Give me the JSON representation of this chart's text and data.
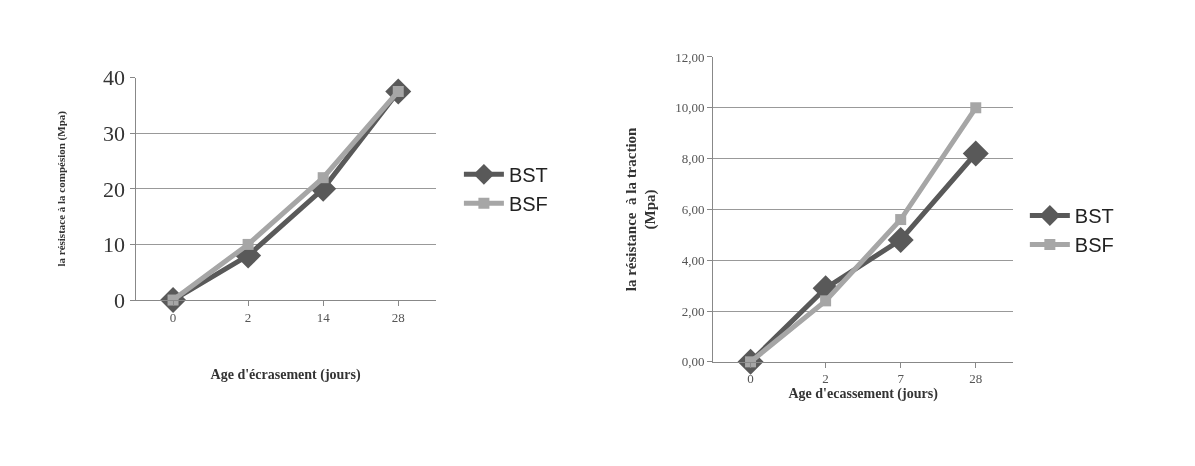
{
  "chart_data": [
    {
      "type": "line",
      "xlabel": "Age d'écrasement (jours)",
      "ylabel": "la résistace à la compésion (Mpa)",
      "categories": [
        "0",
        "2",
        "14",
        "28"
      ],
      "ylim": [
        0,
        40
      ],
      "yticks": [
        0,
        10,
        20,
        30,
        40
      ],
      "grid": "y",
      "legend": "right",
      "line_style": "solid",
      "series": [
        {
          "name": "BST",
          "color": "#595959",
          "marker": "diamond",
          "values": [
            0,
            8,
            20,
            37.5
          ]
        },
        {
          "name": "BSF",
          "color": "#a6a6a6",
          "marker": "square",
          "values": [
            0,
            10,
            22,
            37.5
          ]
        }
      ]
    },
    {
      "type": "line",
      "xlabel": "Age d'ecassement (jours)",
      "ylabel": "la résistance  à la traction\n(Mpa)",
      "categories": [
        "0",
        "2",
        "7",
        "28"
      ],
      "ylim": [
        0,
        12
      ],
      "yticks": [
        {
          "value": 0,
          "label": "0,00"
        },
        {
          "value": 2,
          "label": "2,00"
        },
        {
          "value": 4,
          "label": "4,00"
        },
        {
          "value": 6,
          "label": "6,00"
        },
        {
          "value": 8,
          "label": "8,00"
        },
        {
          "value": 10,
          "label": "10,00"
        },
        {
          "value": 12,
          "label": "12,00"
        }
      ],
      "grid": "y",
      "legend": "right",
      "line_style": "solid",
      "series": [
        {
          "name": "BST",
          "color": "#595959",
          "marker": "diamond",
          "values": [
            0,
            2.9,
            4.8,
            8.2
          ]
        },
        {
          "name": "BSF",
          "color": "#a6a6a6",
          "marker": "square",
          "values": [
            0,
            2.4,
            5.6,
            10.0
          ]
        }
      ]
    }
  ]
}
